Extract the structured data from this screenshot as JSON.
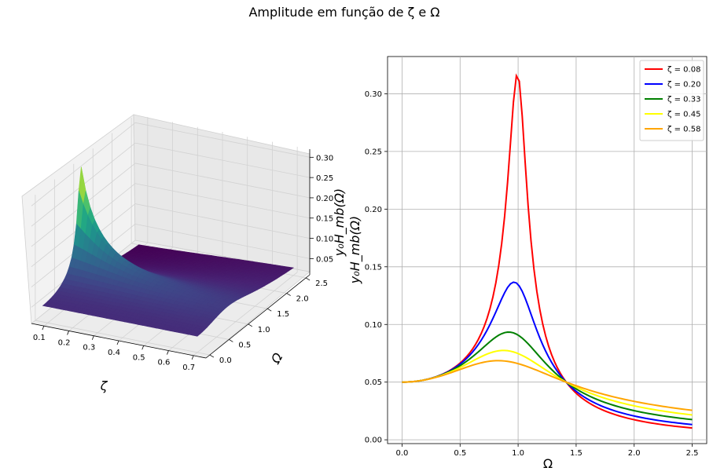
{
  "figure": {
    "title": "Amplitude em função de ζ e Ω"
  },
  "chart_data": [
    {
      "type": "surface3d",
      "xlabel": "ζ",
      "ylabel": "Ω",
      "zlabel": "y₀H_mb(Ω)",
      "xlim": [
        0.05,
        0.75
      ],
      "ylim": [
        -0.1,
        2.6
      ],
      "zlim": [
        0.01,
        0.32
      ],
      "x_ticks": [
        "0.1",
        "0.2",
        "0.3",
        "0.4",
        "0.5",
        "0.6",
        "0.7"
      ],
      "y_ticks": [
        "0.0",
        "0.5",
        "1.0",
        "1.5",
        "2.0",
        "2.5"
      ],
      "z_ticks": [
        "0.05",
        "0.10",
        "0.15",
        "0.20",
        "0.25",
        "0.30"
      ],
      "surface": {
        "zeta_range": [
          0.08,
          0.7
        ],
        "omega_range": [
          0.0,
          2.5
        ],
        "function": "0.05*sqrt(1+(2*zeta*omega)^2)/sqrt((1-omega^2)^2+(2*zeta*omega)^2)",
        "colormap": "viridis",
        "z_max": 0.316
      }
    },
    {
      "type": "line",
      "xlabel": "Ω",
      "ylabel": "y₀H_mb(Ω)",
      "xlim": [
        -0.125,
        2.625
      ],
      "ylim": [
        -0.0033,
        0.3323
      ],
      "x_ticks": [
        "0.0",
        "0.5",
        "1.0",
        "1.5",
        "2.0",
        "2.5"
      ],
      "y_ticks": [
        "0.00",
        "0.05",
        "0.10",
        "0.15",
        "0.20",
        "0.25",
        "0.30"
      ],
      "grid": true,
      "legend_position": "top-right",
      "x_range": [
        0.0,
        2.5
      ],
      "series": [
        {
          "name": "ζ = 0.08",
          "zeta": 0.08,
          "color": "#ff0000",
          "peak": [
            0.98,
            0.316
          ]
        },
        {
          "name": "ζ = 0.20",
          "zeta": 0.2,
          "color": "#0000ff",
          "peak": [
            0.96,
            0.134
          ]
        },
        {
          "name": "ζ = 0.33",
          "zeta": 0.33,
          "color": "#008000",
          "peak": [
            0.92,
            0.094
          ]
        },
        {
          "name": "ζ = 0.45",
          "zeta": 0.45,
          "color": "#ffff00",
          "peak": [
            0.88,
            0.077
          ]
        },
        {
          "name": "ζ = 0.58",
          "zeta": 0.58,
          "color": "#ffa500",
          "peak": [
            0.82,
            0.069
          ]
        }
      ]
    }
  ]
}
